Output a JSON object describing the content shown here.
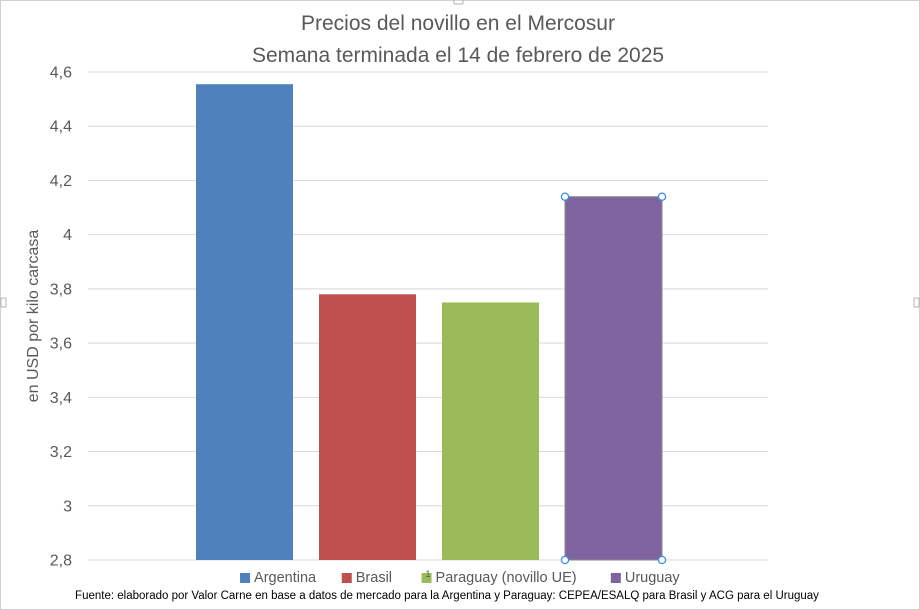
{
  "chart_data": {
    "type": "bar",
    "title": [
      "Precios del novillo en el Mercosur",
      "Semana terminada el 14 de febrero de 2025"
    ],
    "ylabel": "en USD por kilo carcasa",
    "xlabel": "",
    "ylim": [
      2.8,
      4.6
    ],
    "yticks": [
      "2,8",
      "3",
      "3,2",
      "3,4",
      "3,6",
      "3,8",
      "4",
      "4,2",
      "4,4",
      "4,6"
    ],
    "categories": [
      "Argentina",
      "Brasil",
      "Paraguay (novillo UE)",
      "Uruguay"
    ],
    "values": [
      4.555,
      3.78,
      3.75,
      4.14
    ],
    "colors": [
      "#4f81bd",
      "#c0504d",
      "#9bbb59",
      "#8064a2"
    ],
    "grid": true,
    "legend_position": "bottom",
    "selected_series_index": 3,
    "page_marker": "1",
    "source": "Fuente: elaborado por Valor Carne en base a datos de mercado para la Argentina y Paraguay: CEPEA/ESALQ para Brasil y ACG para el Uruguay"
  }
}
